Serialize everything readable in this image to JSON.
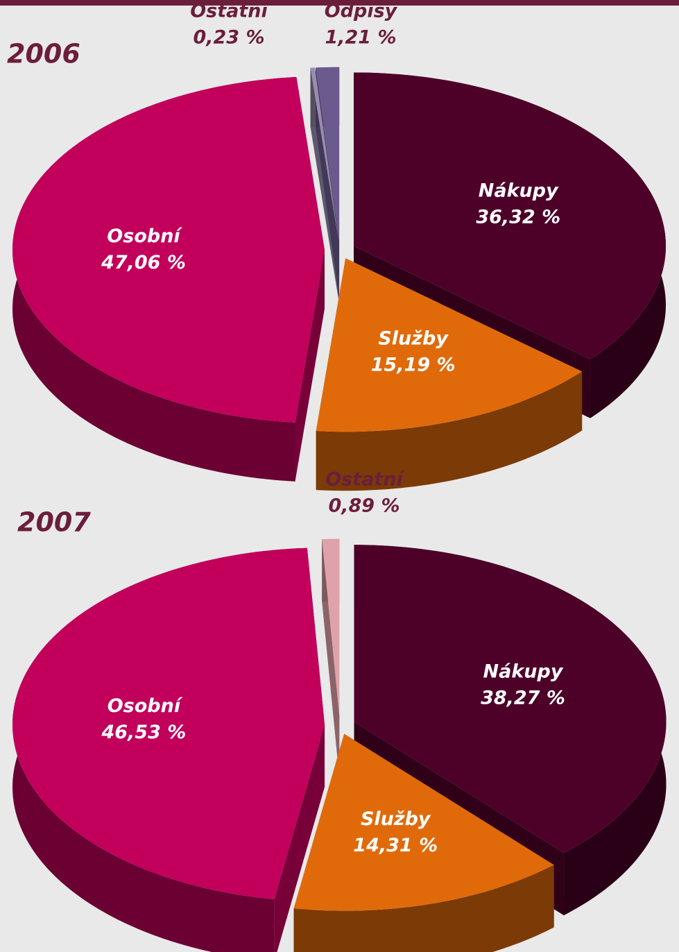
{
  "chart_data": [
    {
      "type": "pie",
      "title": "2006",
      "categories": [
        "Nákupy",
        "Služby",
        "Osobní",
        "Ostatní",
        "Odpisy"
      ],
      "values": [
        36.32,
        15.19,
        47.06,
        0.23,
        1.21
      ],
      "value_labels": [
        "36,32 %",
        "15,19 %",
        "47,06 %",
        "0,23 %",
        "1,21 %"
      ],
      "colors": [
        "#4d0028",
        "#e06a0a",
        "#c2005c",
        "#9a8cb0",
        "#6a5a8e"
      ]
    },
    {
      "type": "pie",
      "title": "2007",
      "categories": [
        "Nákupy",
        "Služby",
        "Osobní",
        "Ostatní"
      ],
      "values": [
        38.27,
        14.31,
        46.53,
        0.89
      ],
      "value_labels": [
        "38,27 %",
        "14,31 %",
        "46,53 %",
        "0,89 %"
      ],
      "colors": [
        "#4d0028",
        "#e06a0a",
        "#c2005c",
        "#e0a2aa"
      ]
    }
  ]
}
